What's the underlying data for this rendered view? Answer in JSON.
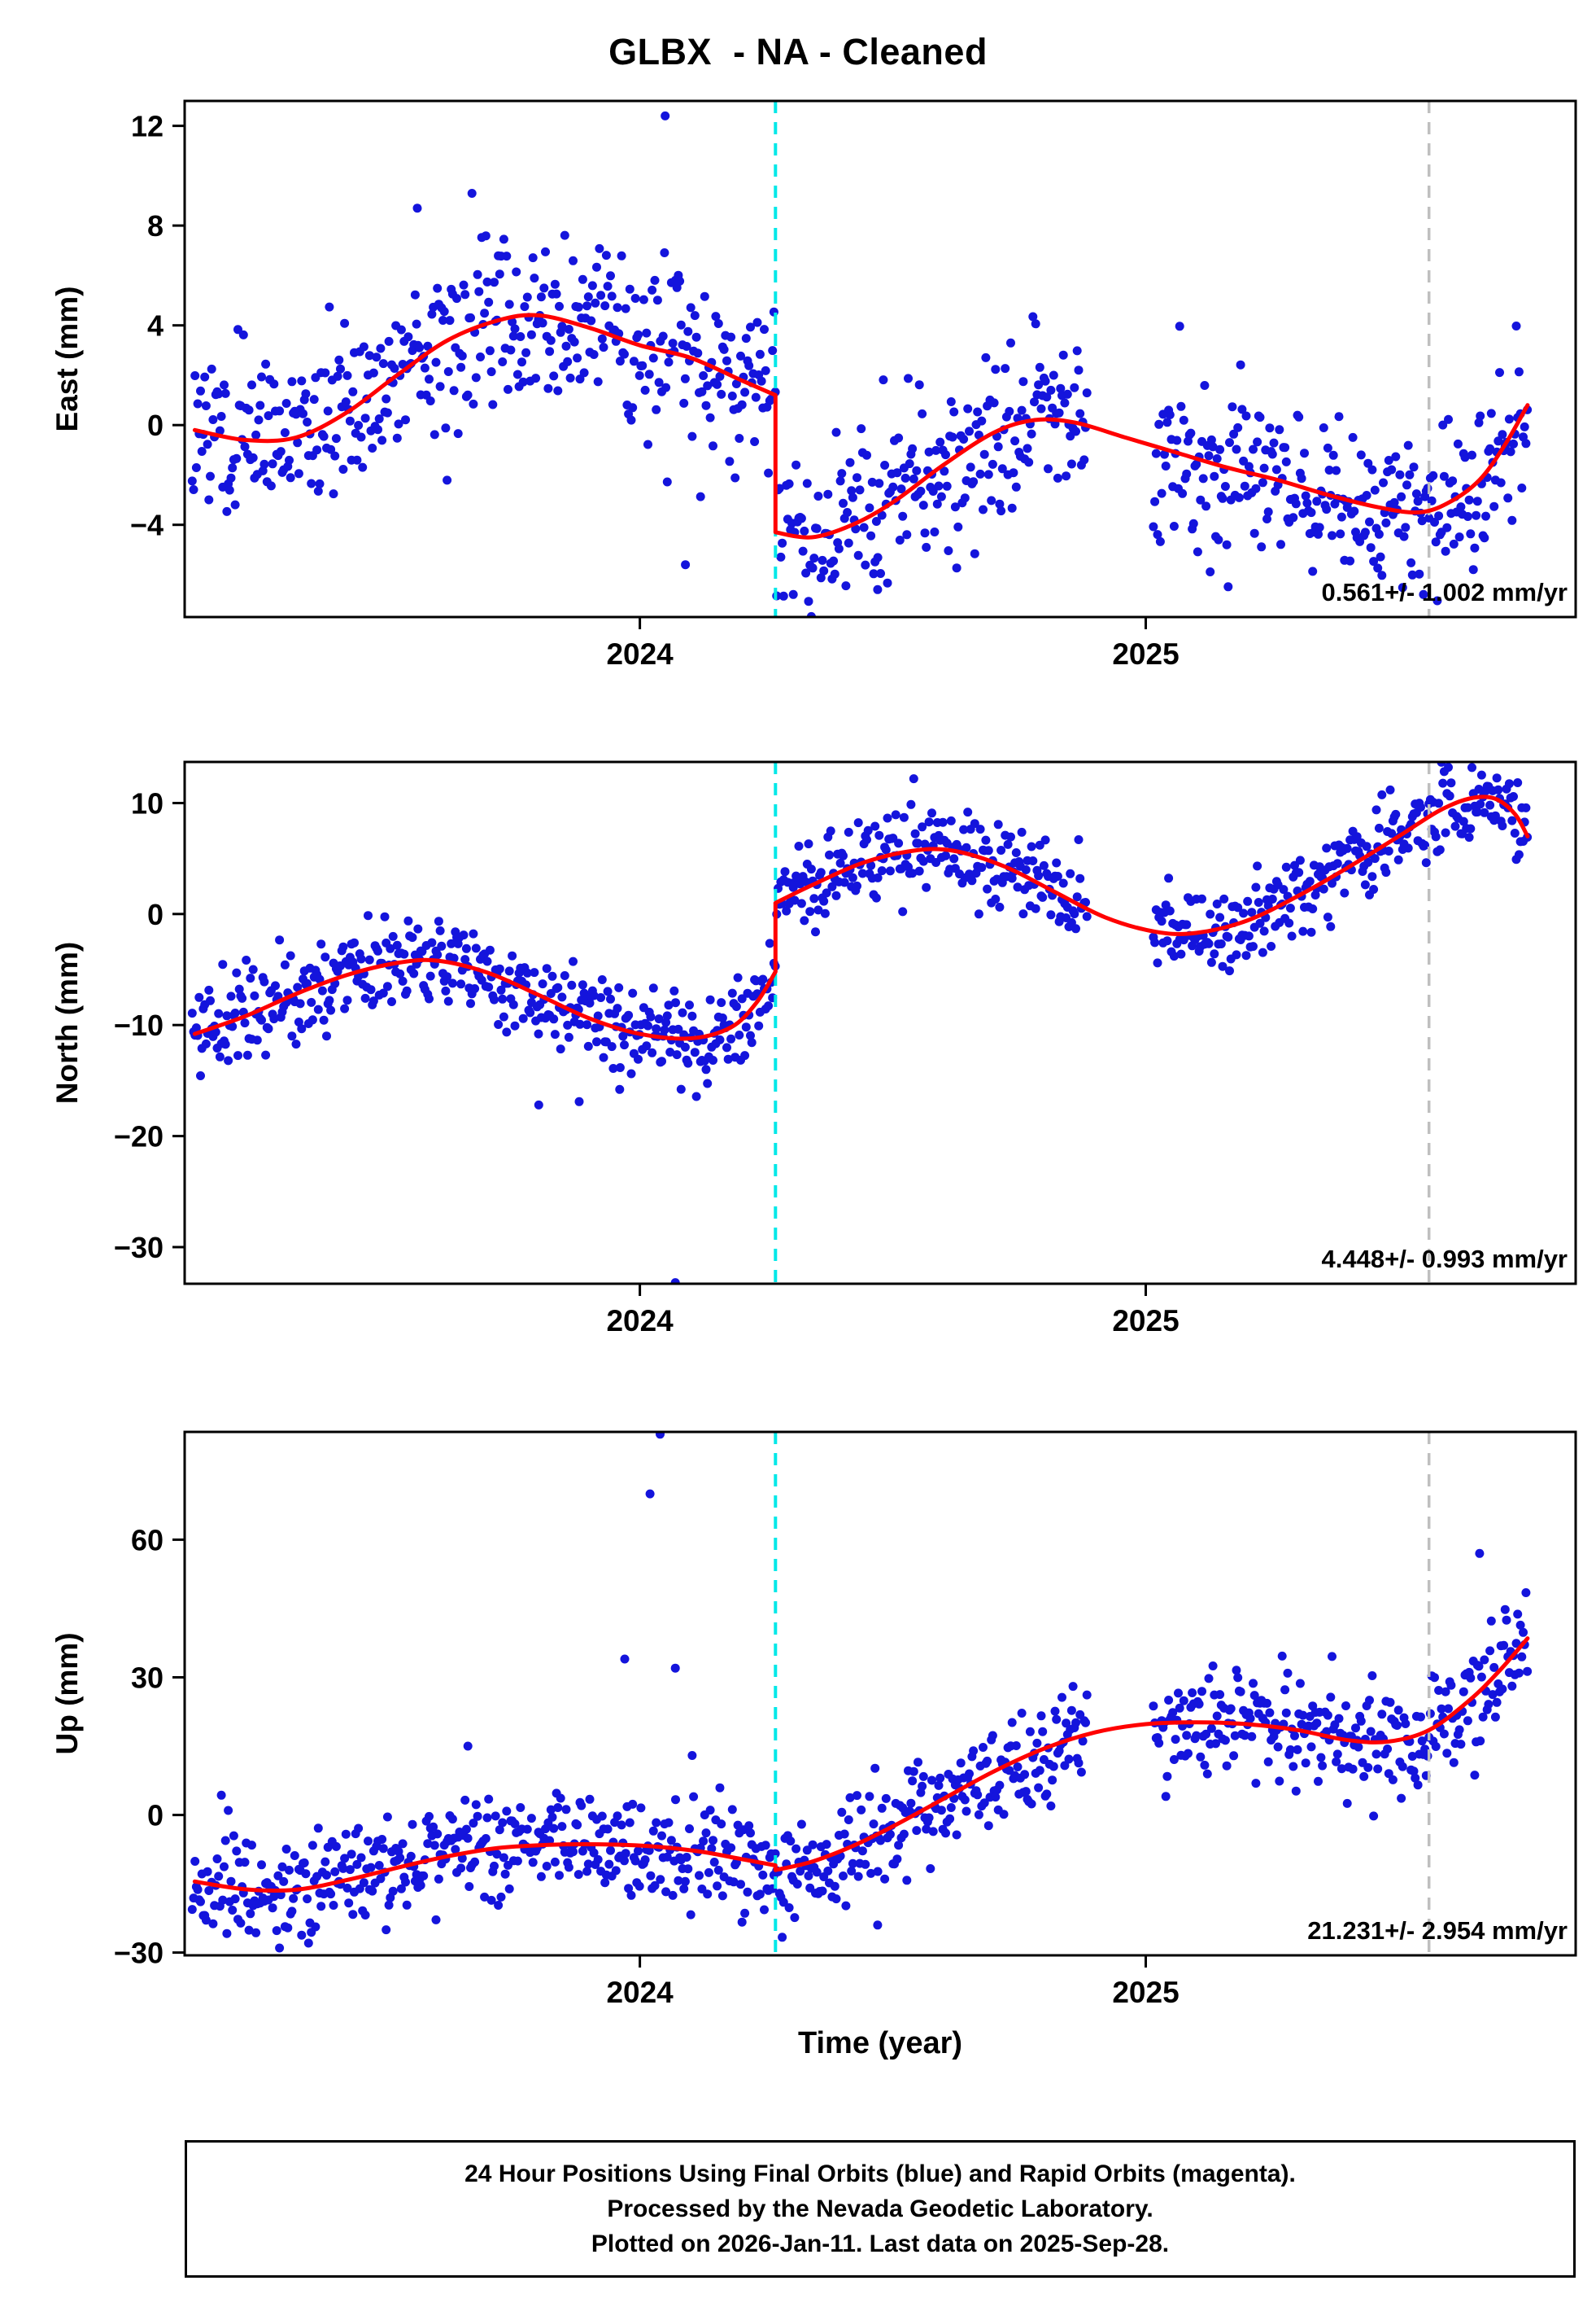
{
  "title": "GLBX  - NA - Cleaned",
  "xlabel": "Time (year)",
  "footer": {
    "lines": [
      "24 Hour Positions Using Final Orbits (blue) and Rapid Orbits (magenta).",
      "Processed by the Nevada Geodetic Laboratory.",
      "Plotted on 2026-Jan-11. Last data on 2025-Sep-28."
    ]
  },
  "colors": {
    "point_blue": "#1414dc",
    "model_red": "#ff0000",
    "event_cyan": "#00e8e8",
    "event_gray": "#bfbfbf",
    "frame": "#000000"
  },
  "x_axis": {
    "range": [
      2023.1,
      2025.85
    ],
    "ticks": [
      {
        "v": 2024,
        "label": "2024"
      },
      {
        "v": 2025,
        "label": "2025"
      }
    ]
  },
  "events": {
    "cyan_x": 2024.268,
    "gray_x": 2025.56
  },
  "scatter_style": {
    "radius": 5.5,
    "t_start": 2023.115,
    "t_end": 2025.755,
    "daily_step": 0.002738,
    "gaps": [
      [
        2024.885,
        2025.015
      ]
    ],
    "seed": 20260111
  },
  "chart_data": [
    {
      "type": "scatter+line",
      "name": "east",
      "ylabel": "East (mm)",
      "ylim": [
        -7.7,
        13.0
      ],
      "yticks": [
        {
          "v": 12,
          "label": "12"
        },
        {
          "v": 8,
          "label": "8"
        },
        {
          "v": 4,
          "label": "4"
        },
        {
          "v": 0,
          "label": "0"
        },
        {
          "v": -4,
          "label": "−4"
        }
      ],
      "velocity_label": "0.561+/- 1.002 mm/yr",
      "noise_sigma": 1.7,
      "model_segments": [
        [
          [
            2023.12,
            -0.2
          ],
          [
            2023.22,
            -0.6
          ],
          [
            2023.32,
            -0.5
          ],
          [
            2023.42,
            0.5
          ],
          [
            2023.52,
            2.0
          ],
          [
            2023.62,
            3.4
          ],
          [
            2023.72,
            4.2
          ],
          [
            2023.8,
            4.4
          ],
          [
            2023.9,
            3.9
          ],
          [
            2024.0,
            3.2
          ],
          [
            2024.1,
            2.7
          ],
          [
            2024.2,
            1.8
          ],
          [
            2024.268,
            1.2
          ]
        ],
        [
          [
            2024.268,
            -4.3
          ],
          [
            2024.34,
            -4.5
          ],
          [
            2024.42,
            -4.0
          ],
          [
            2024.5,
            -3.1
          ],
          [
            2024.6,
            -1.6
          ],
          [
            2024.7,
            -0.3
          ],
          [
            2024.78,
            0.2
          ],
          [
            2024.86,
            0.1
          ],
          [
            2024.96,
            -0.5
          ],
          [
            2025.06,
            -1.1
          ],
          [
            2025.16,
            -1.7
          ],
          [
            2025.26,
            -2.2
          ],
          [
            2025.36,
            -2.8
          ],
          [
            2025.46,
            -3.3
          ],
          [
            2025.54,
            -3.5
          ],
          [
            2025.6,
            -3.1
          ],
          [
            2025.66,
            -2.2
          ],
          [
            2025.71,
            -0.8
          ],
          [
            2025.755,
            0.8
          ]
        ]
      ],
      "outliers": [
        [
          2023.56,
          8.7
        ],
        [
          2024.05,
          12.4
        ],
        [
          2024.09,
          -5.6
        ],
        [
          2024.47,
          -6.6
        ]
      ]
    },
    {
      "type": "scatter+line",
      "name": "north",
      "ylabel": "North (mm)",
      "ylim": [
        -33.3,
        13.7
      ],
      "yticks": [
        {
          "v": 10,
          "label": "10"
        },
        {
          "v": 0,
          "label": "0"
        },
        {
          "v": -10,
          "label": "−10"
        },
        {
          "v": -20,
          "label": "−20"
        },
        {
          "v": -30,
          "label": "−30"
        }
      ],
      "velocity_label": "4.448+/- 0.993 mm/yr",
      "noise_sigma": 2.0,
      "model_segments": [
        [
          [
            2023.12,
            -10.8
          ],
          [
            2023.22,
            -9.2
          ],
          [
            2023.32,
            -7.2
          ],
          [
            2023.42,
            -5.5
          ],
          [
            2023.52,
            -4.4
          ],
          [
            2023.6,
            -4.2
          ],
          [
            2023.7,
            -5.3
          ],
          [
            2023.8,
            -7.3
          ],
          [
            2023.9,
            -9.4
          ],
          [
            2024.0,
            -10.8
          ],
          [
            2024.1,
            -11.2
          ],
          [
            2024.18,
            -10.2
          ],
          [
            2024.23,
            -8.0
          ],
          [
            2024.268,
            -5.2
          ]
        ],
        [
          [
            2024.268,
            1.0
          ],
          [
            2024.34,
            2.6
          ],
          [
            2024.44,
            4.6
          ],
          [
            2024.54,
            5.7
          ],
          [
            2024.62,
            5.7
          ],
          [
            2024.72,
            4.3
          ],
          [
            2024.82,
            2.0
          ],
          [
            2024.92,
            -0.3
          ],
          [
            2025.02,
            -1.6
          ],
          [
            2025.1,
            -1.7
          ],
          [
            2025.2,
            -0.6
          ],
          [
            2025.3,
            1.6
          ],
          [
            2025.4,
            4.2
          ],
          [
            2025.5,
            7.0
          ],
          [
            2025.58,
            9.3
          ],
          [
            2025.64,
            10.4
          ],
          [
            2025.69,
            10.4
          ],
          [
            2025.73,
            9.0
          ],
          [
            2025.755,
            7.0
          ]
        ]
      ],
      "outliers": [
        [
          2023.8,
          -17.2
        ],
        [
          2023.88,
          -16.9
        ],
        [
          2023.96,
          -15.8
        ],
        [
          2024.07,
          -33.2
        ]
      ]
    },
    {
      "type": "scatter+line",
      "name": "up",
      "ylabel": "Up (mm)",
      "ylim": [
        -30.6,
        83.5
      ],
      "yticks": [
        {
          "v": 60,
          "label": "60"
        },
        {
          "v": 30,
          "label": "30"
        },
        {
          "v": 0,
          "label": "0"
        },
        {
          "v": -30,
          "label": "−30"
        }
      ],
      "velocity_label": "21.231+/- 2.954 mm/yr",
      "noise_sigma": 6.0,
      "model_segments": [
        [
          [
            2023.12,
            -14.5
          ],
          [
            2023.22,
            -16.2
          ],
          [
            2023.32,
            -16.3
          ],
          [
            2023.42,
            -14.2
          ],
          [
            2023.52,
            -11.5
          ],
          [
            2023.62,
            -9.0
          ],
          [
            2023.72,
            -7.2
          ],
          [
            2023.82,
            -6.5
          ],
          [
            2023.92,
            -6.4
          ],
          [
            2024.02,
            -6.8
          ],
          [
            2024.12,
            -8.0
          ],
          [
            2024.2,
            -9.6
          ],
          [
            2024.268,
            -11.0
          ]
        ],
        [
          [
            2024.268,
            -12.0
          ],
          [
            2024.34,
            -10.2
          ],
          [
            2024.42,
            -6.8
          ],
          [
            2024.5,
            -2.5
          ],
          [
            2024.6,
            3.5
          ],
          [
            2024.7,
            9.5
          ],
          [
            2024.8,
            14.5
          ],
          [
            2024.9,
            18.0
          ],
          [
            2025.0,
            19.8
          ],
          [
            2025.1,
            20.2
          ],
          [
            2025.2,
            19.8
          ],
          [
            2025.3,
            18.5
          ],
          [
            2025.4,
            16.3
          ],
          [
            2025.48,
            16.0
          ],
          [
            2025.56,
            18.5
          ],
          [
            2025.64,
            25.0
          ],
          [
            2025.7,
            31.5
          ],
          [
            2025.755,
            38.5
          ]
        ]
      ],
      "outliers": [
        [
          2023.66,
          15.0
        ],
        [
          2023.97,
          34.0
        ],
        [
          2024.02,
          70.0
        ],
        [
          2024.04,
          83.0
        ],
        [
          2024.07,
          32.0
        ],
        [
          2024.47,
          -24.0
        ],
        [
          2025.66,
          57.0
        ]
      ]
    }
  ]
}
